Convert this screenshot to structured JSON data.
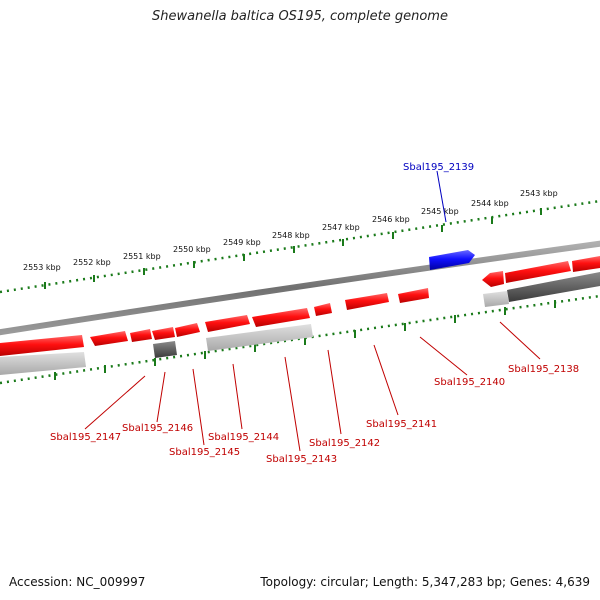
{
  "title": "Shewanella baltica OS195, complete genome",
  "footer": {
    "accession": "Accession: NC_009997",
    "summary": "Topology: circular; Length: 5,347,283 bp; Genes: 4,639"
  },
  "colors": {
    "forward_gene": "#ff1a1a",
    "reverse_gene": "#ff1a1a",
    "highlight_gene": "#1a1aff",
    "backbone": "#888888",
    "tick": "#1a7a1a",
    "label_red": "#c00000",
    "label_blue": "#0000c0"
  },
  "scale": {
    "unit": "kbp",
    "upper_labels": [
      "2543 kbp",
      "2544 kbp",
      "2545 kbp",
      "2546 kbp",
      "2547 kbp",
      "2548 kbp",
      "2549 kbp",
      "2550 kbp",
      "2551 kbp",
      "2552 kbp",
      "2553 kbp"
    ]
  },
  "genes": {
    "highlight": "Sbal195_2139",
    "labels": [
      "Sbal195_2138",
      "Sbal195_2140",
      "Sbal195_2141",
      "Sbal195_2142",
      "Sbal195_2143",
      "Sbal195_2144",
      "Sbal195_2145",
      "Sbal195_2146",
      "Sbal195_2147"
    ]
  }
}
